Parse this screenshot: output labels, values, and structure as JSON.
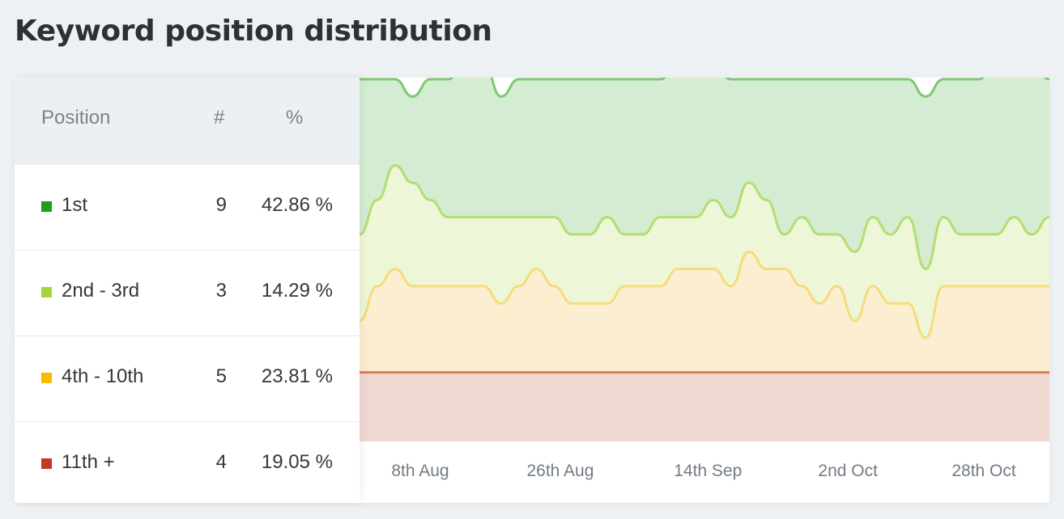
{
  "header": {
    "title": "Keyword position distribution"
  },
  "table": {
    "headers": {
      "position": "Position",
      "count": "#",
      "percent": "%"
    },
    "rows": [
      {
        "label": "1st",
        "count": "9",
        "percent": "42.86 %",
        "color": "#1e9e1e"
      },
      {
        "label": "2nd - 3rd",
        "count": "3",
        "percent": "14.29 %",
        "color": "#a6d63a"
      },
      {
        "label": "4th - 10th",
        "count": "5",
        "percent": "23.81 %",
        "color": "#f5bc00"
      },
      {
        "label": "11th +",
        "count": "4",
        "percent": "19.05 %",
        "color": "#c0392b"
      }
    ]
  },
  "chart_data": {
    "type": "area",
    "stacked": true,
    "x_tick_labels": [
      "8th Aug",
      "26th Aug",
      "14th Sep",
      "2nd Oct",
      "28th Oct"
    ],
    "ylim": [
      0,
      21
    ],
    "series": [
      {
        "name": "11th +",
        "color": "#e07b5a",
        "fill": "#f0d8d3",
        "values": [
          4,
          4,
          4,
          4,
          4,
          4,
          4,
          4,
          4,
          4,
          4,
          4,
          4,
          4,
          4,
          4,
          4,
          4,
          4,
          4,
          4,
          4,
          4,
          4,
          4,
          4,
          4,
          4,
          4,
          4,
          4,
          4,
          4,
          4,
          4,
          4,
          4,
          4,
          4,
          4
        ]
      },
      {
        "name": "4th - 10th",
        "color": "#f5dc7a",
        "fill": "#fcefd1",
        "values": [
          3,
          5,
          6,
          5,
          5,
          5,
          5,
          5,
          4,
          5,
          6,
          5,
          4,
          4,
          4,
          5,
          5,
          5,
          6,
          6,
          6,
          5,
          7,
          6,
          6,
          5,
          4,
          5,
          3,
          5,
          4,
          4,
          2,
          5,
          5,
          5,
          5,
          5,
          5,
          5
        ]
      },
      {
        "name": "2nd - 3rd",
        "color": "#b5dd70",
        "fill": "#eef6d8",
        "values": [
          5,
          5,
          6,
          6,
          5,
          4,
          4,
          4,
          5,
          4,
          3,
          4,
          4,
          4,
          5,
          3,
          3,
          4,
          3,
          3,
          4,
          4,
          4,
          4,
          2,
          4,
          4,
          3,
          4,
          4,
          4,
          5,
          4,
          4,
          3,
          3,
          3,
          4,
          3,
          4
        ]
      },
      {
        "name": "1st",
        "color": "#7cc870",
        "fill": "#d3ecd2",
        "values": [
          9,
          7,
          5,
          5,
          7,
          8,
          9,
          9,
          7,
          8,
          8,
          8,
          9,
          9,
          8,
          9,
          9,
          8,
          9,
          9,
          8,
          8,
          6,
          7,
          9,
          8,
          9,
          9,
          10,
          8,
          9,
          8,
          10,
          8,
          9,
          9,
          10,
          9,
          10,
          8
        ]
      }
    ]
  }
}
